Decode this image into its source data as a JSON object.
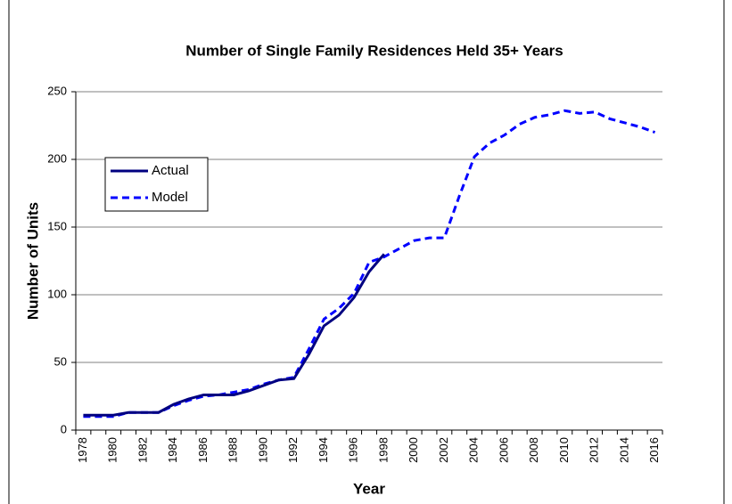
{
  "chart_data": {
    "type": "line",
    "title": "Number of Single Family Residences Held 35+ Years",
    "x_label": "Year",
    "y_label": "Number of Units",
    "categories": [
      "1978",
      null,
      "1980",
      null,
      "1982",
      null,
      "1984",
      null,
      "1986",
      null,
      "1988",
      null,
      "1990",
      null,
      "1992",
      null,
      "1994",
      null,
      "1996",
      null,
      "1998",
      null,
      "2000",
      null,
      "2002",
      null,
      "2004",
      null,
      "2006",
      null,
      "2008",
      null,
      "2010",
      null,
      "2012",
      null,
      "2014",
      null,
      "2016"
    ],
    "series": [
      {
        "name": "Actual",
        "color": "#000080",
        "dash": false,
        "values": [
          11,
          11,
          11,
          13,
          13,
          13,
          19,
          23,
          26,
          26,
          26,
          29,
          33,
          37,
          38,
          56,
          77,
          85,
          98,
          117,
          130,
          null,
          null,
          null,
          null,
          null,
          null,
          null,
          null,
          null,
          null,
          null,
          null,
          null,
          null,
          null,
          null,
          null,
          null
        ]
      },
      {
        "name": "Model",
        "color": "#0000ff",
        "dash": true,
        "values": [
          10,
          10,
          10,
          13,
          13,
          13,
          18,
          22,
          25,
          26,
          28,
          30,
          34,
          37,
          39,
          60,
          82,
          90,
          101,
          124,
          128,
          134,
          140,
          142,
          142,
          173,
          202,
          212,
          218,
          226,
          231,
          233,
          236,
          234,
          235,
          230,
          227,
          224,
          220
        ]
      }
    ],
    "ylim": [
      0,
      250
    ],
    "yticks": [
      0,
      50,
      100,
      150,
      200,
      250
    ],
    "grid": true
  }
}
